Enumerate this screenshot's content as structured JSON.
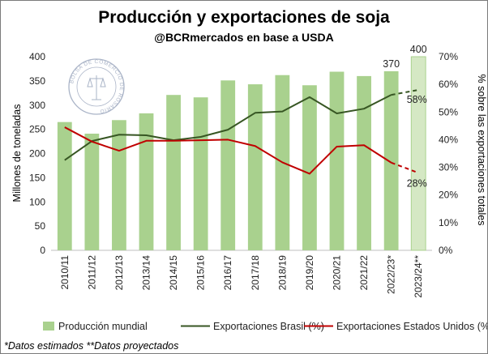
{
  "chart_data": {
    "type": "bar",
    "title": "Producción y exportaciones de soja",
    "subtitle": "@BCRmercados en base a USDA",
    "categories": [
      "2010/11",
      "2011/12",
      "2012/13",
      "2013/14",
      "2014/15",
      "2015/16",
      "2016/17",
      "2017/18",
      "2018/19",
      "2019/20",
      "2020/21",
      "2021/22",
      "2022/23*",
      "2023/24**"
    ],
    "ylabel": "Millones de toneladas",
    "ylabel_right": "% sobre las exportaciones totales",
    "ylim": [
      0,
      400
    ],
    "ylim_right": [
      0,
      0.7
    ],
    "yticks": [
      "0",
      "50",
      "100",
      "150",
      "200",
      "250",
      "300",
      "350",
      "400"
    ],
    "yticks_right": [
      "0%",
      "10%",
      "20%",
      "30%",
      "40%",
      "50%",
      "60%",
      "70%"
    ],
    "grid": false,
    "legend_position": "bottom",
    "series": [
      {
        "name": "Producción mundial",
        "kind": "bar",
        "axis": "left",
        "color": "#a9d18e",
        "projected_color": "#d5e8c4",
        "values": [
          265,
          241,
          269,
          283,
          321,
          316,
          351,
          343,
          362,
          341,
          369,
          360,
          370,
          400
        ]
      },
      {
        "name": "Exportaciones Brasil (%)",
        "kind": "line",
        "axis": "right",
        "color": "#375623",
        "values": [
          0.326,
          0.395,
          0.418,
          0.416,
          0.398,
          0.41,
          0.436,
          0.497,
          0.502,
          0.554,
          0.495,
          0.512,
          0.562,
          0.58
        ],
        "dashed_from_index": 12
      },
      {
        "name": "Exportaciones Estados Unidos (%)",
        "kind": "line",
        "axis": "right",
        "color": "#c00000",
        "values": [
          0.445,
          0.393,
          0.36,
          0.396,
          0.396,
          0.398,
          0.4,
          0.377,
          0.318,
          0.277,
          0.375,
          0.38,
          0.317,
          0.28
        ],
        "dashed_from_index": 12
      }
    ],
    "annotations": [
      {
        "text": "370",
        "series": "Producción mundial",
        "category": "2022/23*"
      },
      {
        "text": "400",
        "series": "Producción mundial",
        "category": "2023/24**"
      },
      {
        "text": "58%",
        "series": "Exportaciones Brasil (%)",
        "category": "2023/24**"
      },
      {
        "text": "28%",
        "series": "Exportaciones Estados Unidos (%)",
        "category": "2023/24**"
      }
    ]
  },
  "footnote": "*Datos estimados **Datos proyectados",
  "watermark": {
    "text": "BOLSA DE COMERCIO DE ROSARIO",
    "color": "#8e9bb5"
  }
}
